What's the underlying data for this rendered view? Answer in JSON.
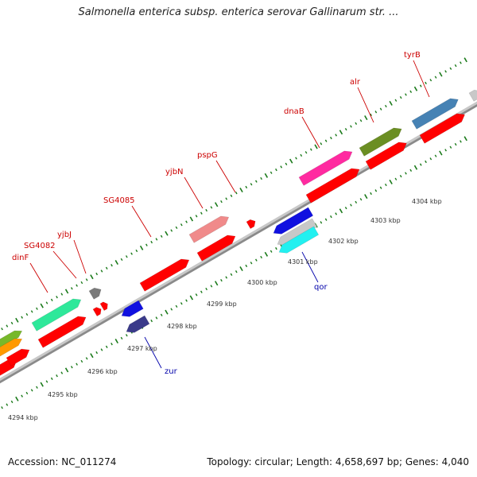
{
  "title": "Salmonella enterica subsp. enterica serovar Gallinarum str. ...",
  "accession": "Accession: NC_011274",
  "summary": "Topology: circular; Length: 4,658,697 bp; Genes: 4,040",
  "colors": {
    "cds_default": "#ff0000",
    "label_top": "#cc0000",
    "label_bottom": "#0000aa",
    "tick": "#1a7a1a",
    "backbone": "#a8a8a8"
  },
  "scale": {
    "tick_labels": [
      "4294 kbp",
      "4295 kbp",
      "4296 kbp",
      "4297 kbp",
      "4298 kbp",
      "4299 kbp",
      "4300 kbp",
      "4301 kbp",
      "4302 kbp",
      "4303 kbp",
      "4304 kbp"
    ]
  },
  "top_labels": [
    {
      "name": "dinF"
    },
    {
      "name": "SG4082"
    },
    {
      "name": "yjbJ"
    },
    {
      "name": "SG4085"
    },
    {
      "name": "yjbN"
    },
    {
      "name": "pspG"
    },
    {
      "name": "dnaB"
    },
    {
      "name": "alr"
    },
    {
      "name": "tyrB"
    }
  ],
  "bottom_labels": [
    {
      "name": "zur"
    },
    {
      "name": "qor"
    }
  ],
  "feature_colors": {
    "dinF": "#2ee89a",
    "yjbJ": "#7a7a7a",
    "pspG": "#f08a8a",
    "dnaB": "#ff2aa0",
    "alr": "#6b8e23",
    "tyrB": "#4682b4",
    "next": "#c8c8c8",
    "left_green": "#77b82a",
    "left_orange": "#ff9900",
    "zur_upper": "#1010e0",
    "zur_lower": "#3a3a8a",
    "qor_blue": "#1010e0",
    "qor_gray": "#c8c8c8",
    "qor_cyan": "#22f0f0"
  }
}
